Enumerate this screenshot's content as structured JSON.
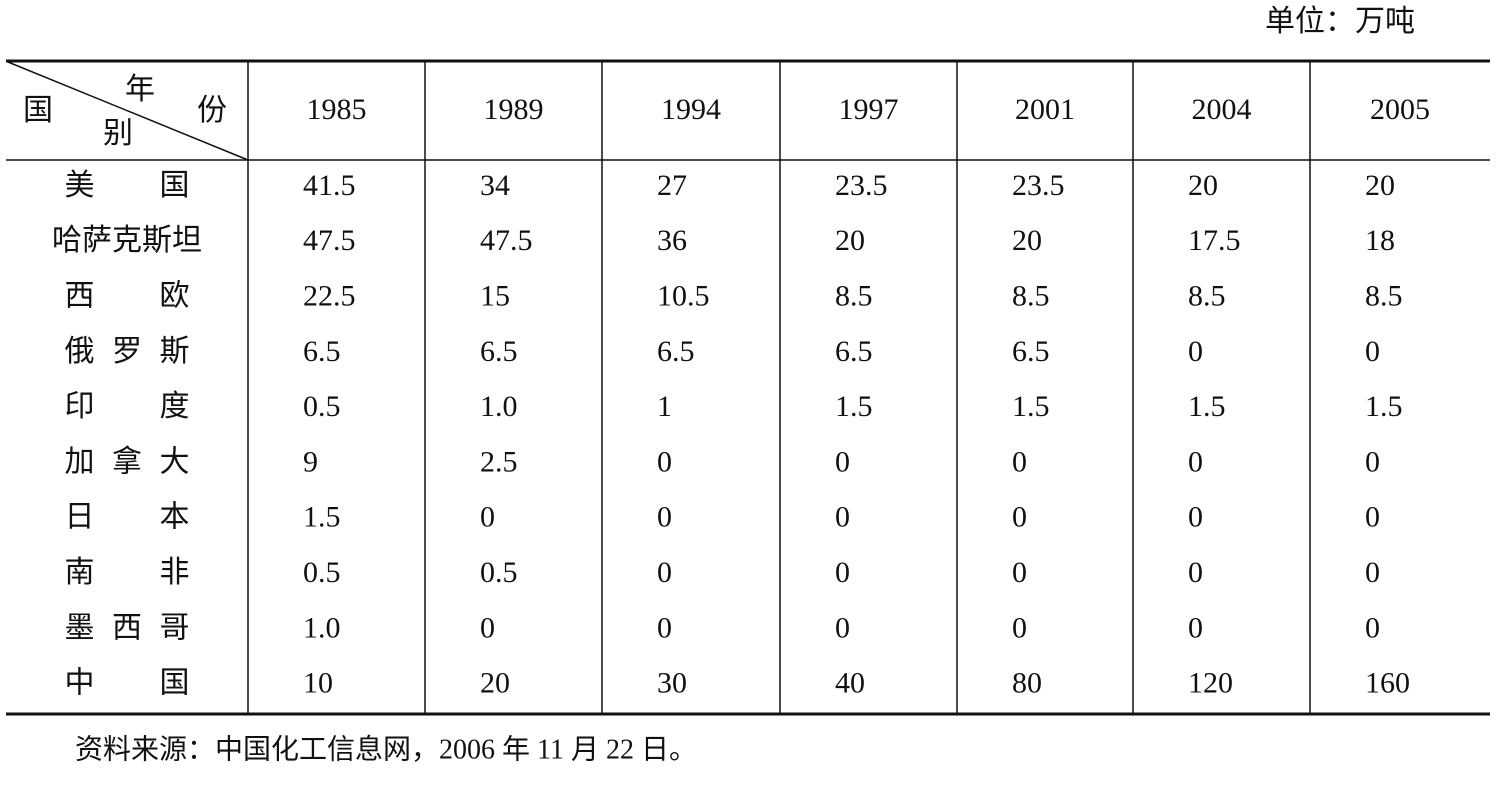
{
  "unit": "单位：万吨",
  "table": {
    "corner": {
      "column_label": [
        "年",
        "份"
      ],
      "row_label": [
        "国",
        "别"
      ]
    },
    "columns": [
      "1985",
      "1989",
      "1994",
      "1997",
      "2001",
      "2004",
      "2005"
    ],
    "rows": [
      [
        "美国",
        "41.5",
        "34",
        "27",
        "23.5",
        "23.5",
        "20",
        "20"
      ],
      [
        "哈萨克斯坦",
        "47.5",
        "47.5",
        "36",
        "20",
        "20",
        "17.5",
        "18"
      ],
      [
        "西欧",
        "22.5",
        "15",
        "10.5",
        "8.5",
        "8.5",
        "8.5",
        "8.5"
      ],
      [
        "俄罗斯",
        "6.5",
        "6.5",
        "6.5",
        "6.5",
        "6.5",
        "0",
        "0"
      ],
      [
        "印度",
        "0.5",
        "1.0",
        "1",
        "1.5",
        "1.5",
        "1.5",
        "1.5"
      ],
      [
        "加拿大",
        "9",
        "2.5",
        "0",
        "0",
        "0",
        "0",
        "0"
      ],
      [
        "日本",
        "1.5",
        "0",
        "0",
        "0",
        "0",
        "0",
        "0"
      ],
      [
        "南非",
        "0.5",
        "0.5",
        "0",
        "0",
        "0",
        "0",
        "0"
      ],
      [
        "墨西哥",
        "1.0",
        "0",
        "0",
        "0",
        "0",
        "0",
        "0"
      ],
      [
        "中国",
        "10",
        "20",
        "30",
        "40",
        "80",
        "120",
        "160"
      ]
    ]
  },
  "source": "资料来源：中国化工信息网，2006 年 11 月 22 日。"
}
